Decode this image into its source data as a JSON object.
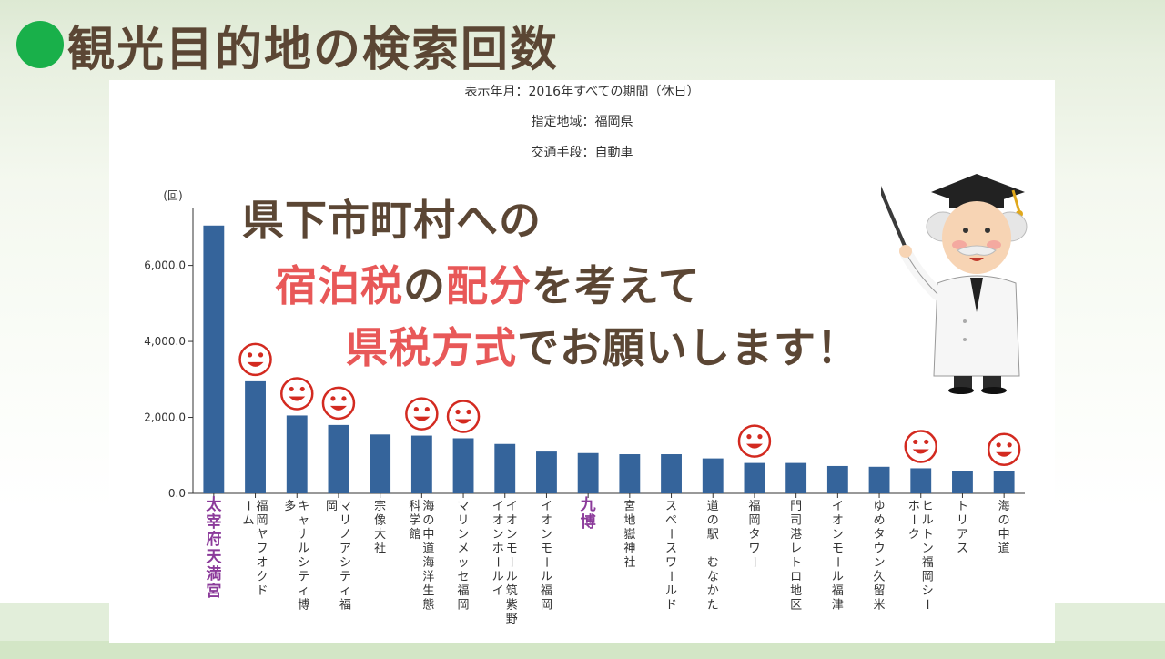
{
  "slide": {
    "title": "観光目的地の検索回数"
  },
  "info": {
    "period": "表示年月：2016年すべての期間（休日）",
    "region": "指定地域：福岡県",
    "transport": "交通手段：自動車"
  },
  "overlay": {
    "line1": "県下市町村への",
    "line2": [
      {
        "text": "宿泊税",
        "highlight": true
      },
      {
        "text": "の",
        "highlight": false
      },
      {
        "text": "配分",
        "highlight": true
      },
      {
        "text": "を考えて",
        "highlight": false
      }
    ],
    "line3": [
      {
        "text": "県税方式",
        "highlight": true
      },
      {
        "text": "でお願いします！",
        "highlight": false
      }
    ]
  },
  "colors": {
    "bar": "#35649b",
    "highlight_label": "#8b3a9a",
    "smiley": "#d32a20",
    "overlay_text": "#5b4634",
    "overlay_accent": "#e85858",
    "title_dot": "#19b04a"
  },
  "icons": {
    "smiley": "smiley-icon",
    "professor": "professor-illustration"
  },
  "chart_data": {
    "type": "bar",
    "ylabel": "(回)",
    "ylim": [
      0,
      7500
    ],
    "yticks": [
      0,
      2000,
      4000,
      6000
    ],
    "ytick_labels": [
      "0.0",
      "2,000.0",
      "4,000.0",
      "6,000.0"
    ],
    "categories": [
      "太宰府天満宮",
      "福岡ヤフオクドーム",
      "キャナルシティ博多",
      "マリノアシティ福岡",
      "宗像大社",
      "海の中道海洋生態科学館",
      "マリンメッセ福岡",
      "イオンモール筑紫野",
      "イオンモール福岡",
      "九博",
      "宮地嶽神社",
      "スペースワールド",
      "道の駅 むなかた",
      "福岡タワー",
      "門司港レトロ地区",
      "イオンモール福津",
      "ゆめタウン久留米",
      "ヒルトン福岡シーホーク",
      "トリアス",
      "海の中道"
    ],
    "label_columns": [
      [
        "太宰府天満宮"
      ],
      [
        "福岡ヤフオクド",
        "ーム"
      ],
      [
        "キャナルシティ博",
        "多"
      ],
      [
        "マリノアシティ福",
        "岡"
      ],
      [
        "宗像大社"
      ],
      [
        "海の中道海洋生態",
        "科学館"
      ],
      [
        "マリンメッセ福岡"
      ],
      [
        "イオンモール筑紫野",
        "イオンホールイ"
      ],
      [
        "イオンモール福岡"
      ],
      [
        "九博"
      ],
      [
        "宮地嶽神社"
      ],
      [
        "スペースワールド"
      ],
      [
        "道の駅 むなかた"
      ],
      [
        "福岡タワー"
      ],
      [
        "門司港レトロ地区"
      ],
      [
        "イオンモール福津"
      ],
      [
        "ゆめタウン久留米"
      ],
      [
        "ヒルトン福岡シー",
        "ホーク"
      ],
      [
        "トリアス"
      ],
      [
        "海の中道"
      ]
    ],
    "values": [
      7050,
      2950,
      2050,
      1800,
      1550,
      1520,
      1450,
      1300,
      1100,
      1060,
      1030,
      1030,
      920,
      800,
      800,
      720,
      700,
      660,
      590,
      580
    ],
    "highlighted_labels": [
      0,
      9
    ],
    "smiley_marked": [
      1,
      2,
      3,
      5,
      6,
      13,
      17,
      19
    ],
    "grid": false,
    "legend": "none"
  }
}
